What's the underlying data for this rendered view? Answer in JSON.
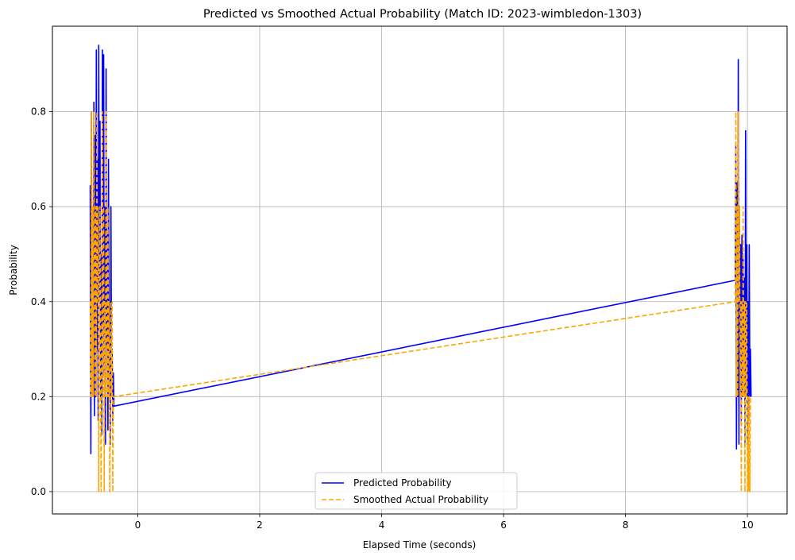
{
  "chart_data": {
    "type": "line",
    "title": "Predicted vs Smoothed Actual Probability (Match ID: 2023-wimbledon-1303)",
    "xlabel": "Elapsed Time (seconds)",
    "ylabel": "Probability",
    "xlim": [
      -1.4,
      10.65
    ],
    "ylim": [
      -0.047,
      0.98
    ],
    "xticks": [
      0,
      2,
      4,
      6,
      8,
      10
    ],
    "xtick_labels": [
      "0",
      "2",
      "4",
      "6",
      "8",
      "10"
    ],
    "yticks": [
      0.0,
      0.2,
      0.4,
      0.6,
      0.8
    ],
    "ytick_labels": [
      "0.0",
      "0.2",
      "0.4",
      "0.6",
      "0.8"
    ],
    "grid": true,
    "legend_position": "lower-center",
    "series": [
      {
        "name": "Predicted Probability",
        "color": "#0000ff",
        "style": "solid",
        "x": [
          -0.78,
          -0.77,
          -0.76,
          -0.75,
          -0.74,
          -0.73,
          -0.72,
          -0.71,
          -0.7,
          -0.69,
          -0.68,
          -0.67,
          -0.66,
          -0.65,
          -0.64,
          -0.63,
          -0.62,
          -0.61,
          -0.6,
          -0.59,
          -0.58,
          -0.57,
          -0.56,
          -0.55,
          -0.54,
          -0.53,
          -0.52,
          -0.51,
          -0.5,
          -0.49,
          -0.48,
          -0.47,
          -0.46,
          -0.45,
          -0.44,
          -0.43,
          -0.42,
          -0.41,
          -0.4,
          -0.39,
          9.8,
          9.81,
          9.82,
          9.83,
          9.84,
          9.85,
          9.86,
          9.87,
          9.88,
          9.89,
          9.9,
          9.91,
          9.92,
          9.93,
          9.94,
          9.95,
          9.96,
          9.97,
          9.98,
          9.99,
          10.0,
          10.01,
          10.02,
          10.03,
          10.04,
          10.05,
          10.06
        ],
        "y": [
          0.645,
          0.08,
          0.8,
          0.25,
          0.6,
          0.3,
          0.82,
          0.16,
          0.75,
          0.2,
          0.93,
          0.3,
          0.7,
          0.15,
          0.94,
          0.4,
          0.78,
          0.2,
          0.5,
          0.12,
          0.93,
          0.35,
          0.92,
          0.25,
          0.6,
          0.1,
          0.89,
          0.3,
          0.55,
          0.13,
          0.7,
          0.25,
          0.4,
          0.1,
          0.6,
          0.2,
          0.3,
          0.15,
          0.25,
          0.18,
          0.445,
          0.73,
          0.09,
          0.65,
          0.2,
          0.91,
          0.1,
          0.6,
          0.3,
          0.52,
          0.15,
          0.54,
          0.2,
          0.5,
          0.3,
          0.45,
          0.1,
          0.76,
          0.2,
          0.52,
          0.1,
          0.4,
          0.15,
          0.52,
          0.2,
          0.3,
          0.2
        ]
      },
      {
        "name": "Smoothed Actual Probability",
        "color": "#ffa500",
        "style": "dashed",
        "x": [
          -0.78,
          -0.77,
          -0.76,
          -0.75,
          -0.74,
          -0.73,
          -0.72,
          -0.71,
          -0.7,
          -0.69,
          -0.68,
          -0.67,
          -0.66,
          -0.65,
          -0.64,
          -0.63,
          -0.62,
          -0.61,
          -0.6,
          -0.59,
          -0.58,
          -0.57,
          -0.56,
          -0.55,
          -0.54,
          -0.53,
          -0.52,
          -0.51,
          -0.5,
          -0.49,
          -0.48,
          -0.47,
          -0.46,
          -0.45,
          -0.44,
          -0.43,
          -0.42,
          -0.41,
          -0.4,
          -0.39,
          9.8,
          9.81,
          9.82,
          9.83,
          9.84,
          9.85,
          9.86,
          9.87,
          9.88,
          9.89,
          9.9,
          9.91,
          9.92,
          9.93,
          9.94,
          9.95,
          9.96,
          9.97,
          9.98,
          9.99,
          10.0,
          10.01,
          10.02,
          10.03,
          10.04,
          10.05,
          10.06
        ],
        "y": [
          0.4,
          0.2,
          0.8,
          0.2,
          0.6,
          0.2,
          0.8,
          0.4,
          0.2,
          0.6,
          0.2,
          0.8,
          0.4,
          0.6,
          0.0,
          0.4,
          0.6,
          0.2,
          0.0,
          0.4,
          0.8,
          0.2,
          0.6,
          0.0,
          0.4,
          0.2,
          0.8,
          0.4,
          0.2,
          0.6,
          0.2,
          0.4,
          0.0,
          0.2,
          0.4,
          0.2,
          0.4,
          0.0,
          0.2,
          0.2,
          0.4,
          0.8,
          0.2,
          0.6,
          0.2,
          0.8,
          0.4,
          0.6,
          0.2,
          0.4,
          0.0,
          0.4,
          0.2,
          0.6,
          0.2,
          0.4,
          0.0,
          0.4,
          0.2,
          0.4,
          0.0,
          0.2,
          0.0,
          0.2,
          0.0,
          0.2,
          0.2
        ]
      }
    ]
  }
}
